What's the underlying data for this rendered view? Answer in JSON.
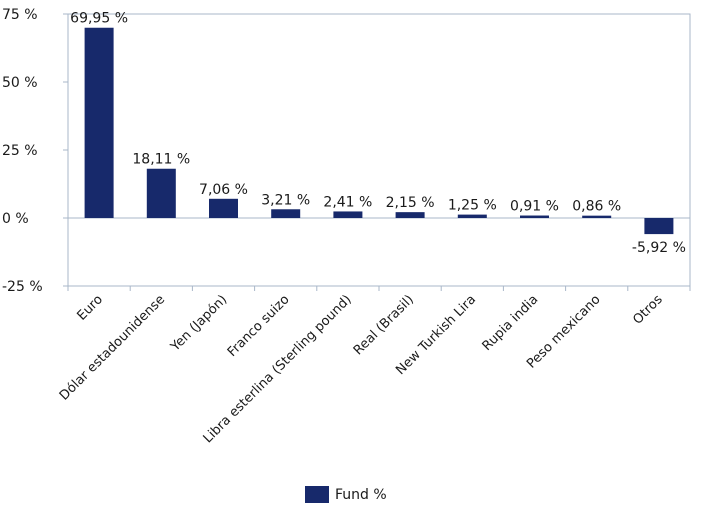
{
  "chart_data": {
    "type": "bar",
    "categories": [
      "Euro",
      "Dólar estadounidense",
      "Yen (Japón)",
      "Franco suizo",
      "Libra esterlina (Sterling pound)",
      "Real (Brasil)",
      "New Turkish Lira",
      "Rupia india",
      "Peso mexicano",
      "Otros"
    ],
    "series": [
      {
        "name": "Fund %",
        "values": [
          69.95,
          18.11,
          7.06,
          3.21,
          2.41,
          2.15,
          1.25,
          0.91,
          0.86,
          -5.92
        ],
        "labels": [
          "69,95 %",
          "18,11 %",
          "7,06 %",
          "3,21 %",
          "2,41 %",
          "2,15 %",
          "1,25 %",
          "0,91 %",
          "0,86 %",
          "-5,92 %"
        ]
      }
    ],
    "ylim": [
      -25,
      75
    ],
    "yticks": [
      75,
      50,
      25,
      0,
      -25
    ],
    "ytick_labels": [
      "75 %",
      "50 %",
      "25 %",
      "0 %",
      "-25 %"
    ],
    "grid": false,
    "legend_position": "bottom",
    "bar_color": "#17296b"
  },
  "legend": {
    "label": "Fund %"
  }
}
